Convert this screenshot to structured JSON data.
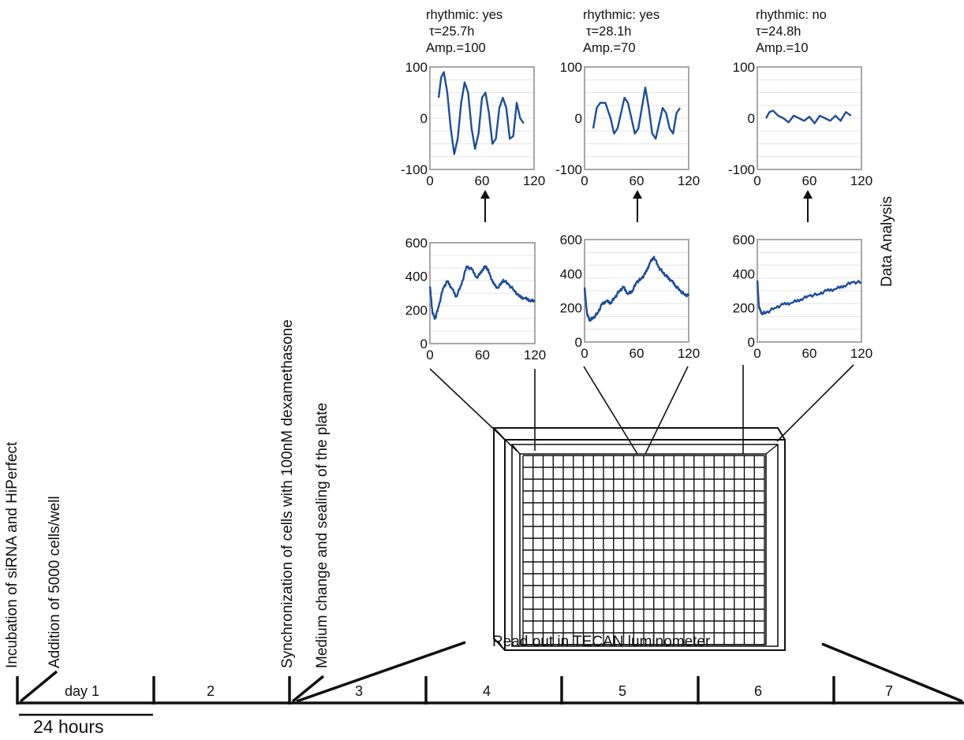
{
  "steps": {
    "incubation": "Incubation of siRNA and HiPerfect",
    "addition": "Addition of 5000 cells/well",
    "synchronization": "Synchronization of cells with 100nM dexamethasone",
    "medium": "Medium change and sealing of the plate",
    "data_analysis": "Data Analysis",
    "readout": "Read out in TECAN luminometer"
  },
  "timeline": {
    "days": [
      "day 1",
      "2",
      "3",
      "4",
      "5",
      "6",
      "7"
    ],
    "scale_label": "24 hours"
  },
  "wells": [
    {
      "rhythmic": "rhythmic: yes",
      "period": "τ=25.7h",
      "amplitude": "Amp.=100"
    },
    {
      "rhythmic": "rhythmic: yes",
      "period": "τ=28.1h",
      "amplitude": "Amp.=70"
    },
    {
      "rhythmic": "rhythmic: no",
      "period": "τ=24.8h",
      "amplitude": "Amp.=10"
    }
  ],
  "chart_data": [
    {
      "type": "line",
      "group": "detrended",
      "well": 1,
      "xlim": [
        0,
        120
      ],
      "ylim": [
        -100,
        100
      ],
      "xticks": [
        "0",
        "60",
        "120"
      ],
      "yticks": [
        "-100",
        "0",
        "100"
      ],
      "x": [
        10,
        13,
        16,
        20,
        24,
        28,
        32,
        36,
        40,
        44,
        48,
        52,
        56,
        60,
        64,
        68,
        72,
        76,
        80,
        84,
        88,
        92,
        96,
        100,
        104,
        108
      ],
      "y": [
        40,
        80,
        90,
        50,
        -20,
        -70,
        -40,
        30,
        70,
        50,
        -20,
        -60,
        -30,
        40,
        50,
        10,
        -50,
        -40,
        20,
        40,
        20,
        -40,
        -35,
        30,
        0,
        -10
      ]
    },
    {
      "type": "line",
      "group": "detrended",
      "well": 2,
      "xlim": [
        0,
        120
      ],
      "ylim": [
        -100,
        100
      ],
      "xticks": [
        "0",
        "60",
        "120"
      ],
      "yticks": [
        "-100",
        "0",
        "100"
      ],
      "x": [
        10,
        14,
        18,
        24,
        30,
        34,
        38,
        42,
        46,
        50,
        54,
        58,
        62,
        66,
        70,
        74,
        78,
        82,
        86,
        90,
        94,
        98,
        102,
        106,
        110
      ],
      "y": [
        -20,
        20,
        30,
        30,
        0,
        -30,
        -20,
        10,
        40,
        30,
        0,
        -30,
        -20,
        20,
        60,
        20,
        -30,
        -40,
        -10,
        20,
        10,
        -20,
        -30,
        10,
        20
      ]
    },
    {
      "type": "line",
      "group": "detrended",
      "well": 3,
      "xlim": [
        0,
        120
      ],
      "ylim": [
        -100,
        100
      ],
      "xticks": [
        "0",
        "60",
        "120"
      ],
      "yticks": [
        "-100",
        "0",
        "100"
      ],
      "x": [
        10,
        14,
        18,
        24,
        30,
        36,
        42,
        48,
        54,
        60,
        66,
        72,
        78,
        84,
        90,
        96,
        102,
        108
      ],
      "y": [
        0,
        12,
        15,
        5,
        0,
        -8,
        5,
        0,
        -5,
        3,
        -10,
        5,
        0,
        -5,
        5,
        -5,
        12,
        5
      ]
    },
    {
      "type": "line",
      "group": "raw",
      "well": 1,
      "xlim": [
        0,
        120
      ],
      "ylim": [
        0,
        600
      ],
      "xticks": [
        "0",
        "60",
        "120"
      ],
      "yticks": [
        "0",
        "200",
        "400",
        "600"
      ],
      "x": [
        0,
        3,
        6,
        10,
        15,
        20,
        25,
        30,
        36,
        42,
        48,
        54,
        60,
        64,
        68,
        72,
        78,
        84,
        90,
        96,
        102,
        108,
        114,
        120
      ],
      "y": [
        340,
        180,
        150,
        220,
        330,
        370,
        330,
        280,
        350,
        460,
        440,
        390,
        440,
        460,
        420,
        360,
        330,
        380,
        350,
        320,
        280,
        270,
        260,
        250
      ]
    },
    {
      "type": "line",
      "group": "raw",
      "well": 2,
      "xlim": [
        0,
        120
      ],
      "ylim": [
        0,
        600
      ],
      "xticks": [
        "0",
        "60",
        "120"
      ],
      "yticks": [
        "0",
        "200",
        "400",
        "600"
      ],
      "x": [
        0,
        3,
        6,
        10,
        15,
        20,
        25,
        30,
        35,
        40,
        45,
        50,
        55,
        60,
        65,
        70,
        75,
        80,
        85,
        90,
        95,
        100,
        105,
        110,
        115,
        120
      ],
      "y": [
        320,
        160,
        130,
        140,
        170,
        220,
        240,
        230,
        260,
        300,
        320,
        280,
        300,
        350,
        370,
        400,
        460,
        500,
        440,
        410,
        380,
        360,
        330,
        300,
        280,
        270
      ]
    },
    {
      "type": "line",
      "group": "raw",
      "well": 3,
      "xlim": [
        0,
        120
      ],
      "ylim": [
        0,
        600
      ],
      "xticks": [
        "0",
        "60",
        "120"
      ],
      "yticks": [
        "0",
        "200",
        "400",
        "600"
      ],
      "x": [
        0,
        2,
        5,
        10,
        20,
        30,
        40,
        50,
        60,
        70,
        80,
        90,
        100,
        110,
        120
      ],
      "y": [
        360,
        200,
        170,
        170,
        200,
        220,
        230,
        250,
        270,
        280,
        300,
        310,
        330,
        350,
        350
      ]
    }
  ]
}
